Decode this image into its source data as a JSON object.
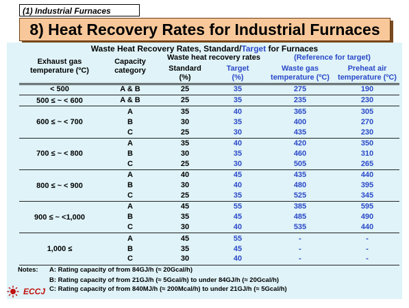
{
  "section_tag": "(1) Industrial Furnaces",
  "title": "8) Heat Recovery Rates for Industrial Furnaces",
  "table": {
    "title_pre": "Waste Heat Recovery Rates, Standard/",
    "title_target": "Target",
    "title_post": " for Furnaces",
    "headers": {
      "exhaust_line1": "Exhaust gas",
      "exhaust_line2": "temperature (ºC)",
      "capacity_line1": "Capacity",
      "capacity_line2": "category",
      "recovery_group": "Waste heat recovery rates",
      "standard_line1": "Standard",
      "standard_line2": "(%)",
      "target_line1": "Target",
      "target_line2": "(%)",
      "reference_group": "(Reference for target)",
      "wastegas_line1": "Waste gas",
      "wastegas_line2": "temperature (ºC)",
      "preheat_line1": "Preheat air",
      "preheat_line2": "temperature (ºC)"
    },
    "groups": [
      {
        "temp": "< 500",
        "rows": [
          {
            "cat": "A & B",
            "std": "25",
            "tgt": "35",
            "waste": "275",
            "preheat": "190"
          }
        ]
      },
      {
        "temp": "500 ≤ ~ < 600",
        "rows": [
          {
            "cat": "A & B",
            "std": "25",
            "tgt": "35",
            "waste": "235",
            "preheat": "230"
          }
        ]
      },
      {
        "temp": "600 ≤ ~ < 700",
        "rows": [
          {
            "cat": "A",
            "std": "35",
            "tgt": "40",
            "waste": "365",
            "preheat": "305"
          },
          {
            "cat": "B",
            "std": "30",
            "tgt": "35",
            "waste": "400",
            "preheat": "270"
          },
          {
            "cat": "C",
            "std": "25",
            "tgt": "30",
            "waste": "435",
            "preheat": "230"
          }
        ]
      },
      {
        "temp": "700 ≤ ~ < 800",
        "rows": [
          {
            "cat": "A",
            "std": "35",
            "tgt": "40",
            "waste": "420",
            "preheat": "350"
          },
          {
            "cat": "B",
            "std": "30",
            "tgt": "35",
            "waste": "460",
            "preheat": "310"
          },
          {
            "cat": "C",
            "std": "25",
            "tgt": "30",
            "waste": "505",
            "preheat": "265"
          }
        ]
      },
      {
        "temp": "800 ≤ ~ < 900",
        "rows": [
          {
            "cat": "A",
            "std": "40",
            "tgt": "45",
            "waste": "435",
            "preheat": "440"
          },
          {
            "cat": "B",
            "std": "30",
            "tgt": "40",
            "waste": "480",
            "preheat": "395"
          },
          {
            "cat": "C",
            "std": "25",
            "tgt": "35",
            "waste": "525",
            "preheat": "345"
          }
        ]
      },
      {
        "temp": "900 ≤ ~ <1,000",
        "rows": [
          {
            "cat": "A",
            "std": "45",
            "tgt": "55",
            "waste": "385",
            "preheat": "595"
          },
          {
            "cat": "B",
            "std": "35",
            "tgt": "45",
            "waste": "485",
            "preheat": "490"
          },
          {
            "cat": "C",
            "std": "30",
            "tgt": "40",
            "waste": "535",
            "preheat": "440"
          }
        ]
      },
      {
        "temp": "1,000 ≤",
        "rows": [
          {
            "cat": "A",
            "std": "45",
            "tgt": "55",
            "waste": "-",
            "preheat": "-"
          },
          {
            "cat": "B",
            "std": "35",
            "tgt": "45",
            "waste": "-",
            "preheat": "-"
          },
          {
            "cat": "C",
            "std": "30",
            "tgt": "40",
            "waste": "-",
            "preheat": "-"
          }
        ]
      }
    ]
  },
  "notes": {
    "label": "Notes:",
    "a": "A: Rating capacity of from 84GJ/h (≈ 20Gcal/h)",
    "b": "B: Rating capacity of from 21GJ/h (≈ 5Gcal/h) to under 84GJ/h (≈ 20Gcal/h)",
    "c": "C: Rating capacity of from 840MJ/h (≈ 200Mcal/h) to under 21GJ/h (≈ 5Gcal/h)"
  },
  "logo": {
    "text": "ECCJ",
    "color": "#c01010"
  }
}
